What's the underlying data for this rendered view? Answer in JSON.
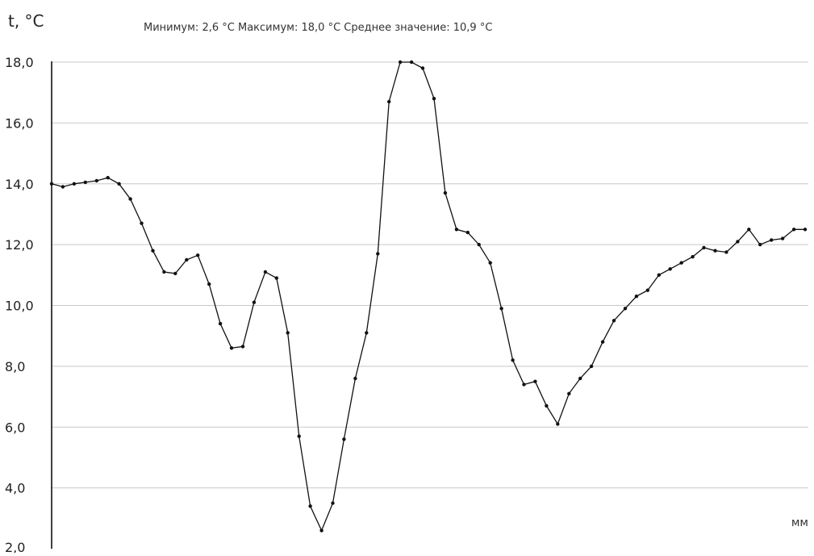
{
  "colors": {
    "background": "#ffffff",
    "line": "#111111",
    "grid": "#c8c8c8",
    "axis": "#000000",
    "text": "#222222"
  },
  "chart_data": {
    "type": "line",
    "ylabel": "t, °C",
    "xlabel": "мм",
    "stats": {
      "min_label": "Минимум:",
      "min_value": "2,6",
      "max_label": "Максимум:",
      "max_value": "18,0",
      "mean_label": "Среднее значение:",
      "mean_value": "10,9",
      "unit": "°C"
    },
    "y_ticks": [
      "18,0",
      "16,0",
      "14,0",
      "12,0",
      "10,0",
      "8,0",
      "6,0",
      "4,0",
      "2,0"
    ],
    "y_tick_values": [
      18,
      16,
      14,
      12,
      10,
      8,
      6,
      4,
      2
    ],
    "ylim": [
      2,
      18
    ],
    "grid": true,
    "marker": "dot",
    "series": [
      {
        "values": [
          14.0,
          13.9,
          14.0,
          14.05,
          14.1,
          14.2,
          14.0,
          13.5,
          12.7,
          11.8,
          11.1,
          11.05,
          11.5,
          11.65,
          10.7,
          9.4,
          8.6,
          8.65,
          10.1,
          11.1,
          10.9,
          9.1,
          5.7,
          3.4,
          2.6,
          3.5,
          5.6,
          7.6,
          9.1,
          11.7,
          16.7,
          18.0,
          18.0,
          17.8,
          16.8,
          13.7,
          12.5,
          12.4,
          12.0,
          11.4,
          9.9,
          8.2,
          7.4,
          7.5,
          6.7,
          6.1,
          7.1,
          7.6,
          8.0,
          8.8,
          9.5,
          9.9,
          10.3,
          10.5,
          11.0,
          11.2,
          11.4,
          11.6,
          11.9,
          11.8,
          11.75,
          12.1,
          12.5,
          12.0,
          12.15,
          12.2,
          12.5,
          12.5
        ]
      }
    ]
  }
}
